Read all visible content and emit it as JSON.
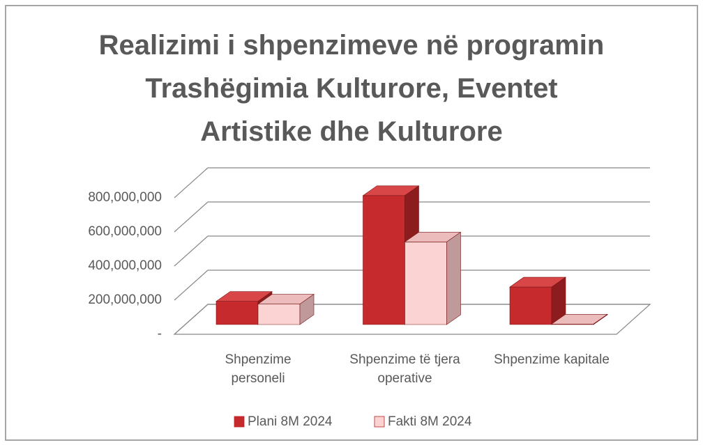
{
  "chart_data": {
    "type": "bar3d",
    "title": "Realizimi i shpenzimeve në programin\nTrashëgimia Kulturore,  Eventet\nArtistike dhe Kulturore",
    "categories": [
      "Shpenzime\npersoneli",
      "Shpenzime të tjera\noperative",
      "Shpenzime kapitale"
    ],
    "series": [
      {
        "name": "Plani 8M 2024",
        "color": "#c62a2c",
        "values": [
          136000000,
          756000000,
          220000000
        ]
      },
      {
        "name": "Fakti 8M 2024",
        "color": "#fbd3d3",
        "values": [
          120000000,
          484000000,
          3000000
        ]
      }
    ],
    "ylim": [
      0,
      800000000
    ],
    "yticks": [
      {
        "value": 0,
        "label": "-"
      },
      {
        "value": 200000000,
        "label": "200,000,000"
      },
      {
        "value": 400000000,
        "label": "400,000,000"
      },
      {
        "value": 600000000,
        "label": "600,000,000"
      },
      {
        "value": 800000000,
        "label": "800,000,000"
      }
    ],
    "grid": true,
    "legend": "bottom"
  }
}
